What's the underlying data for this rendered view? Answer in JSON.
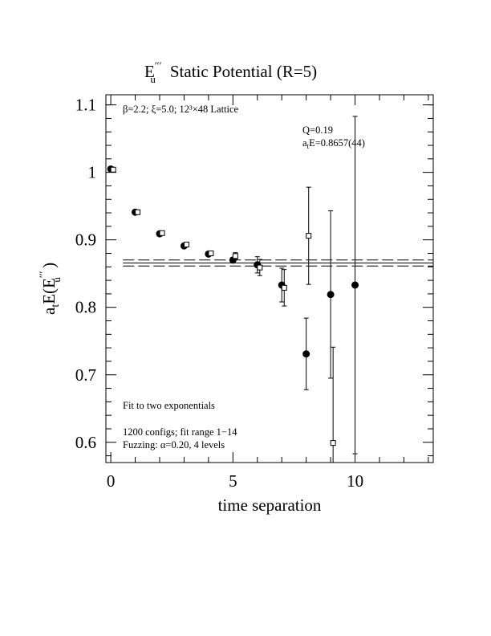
{
  "chart_data": {
    "type": "scatter",
    "title": {
      "symbol": "E",
      "superscript": "′′′",
      "subscript": "u",
      "text": "Static Potential (R=5)"
    },
    "xlabel": "time separation",
    "ylabel": {
      "prefix": "a",
      "prefix_sub": "t",
      "mid": "E(E",
      "superscript": "′′′",
      "subscript": "u",
      "suffix": " )"
    },
    "annotations": {
      "lattice": "β=2.2; ξ=5.0; 12³×48 Lattice",
      "q": "Q=0.19",
      "energy": {
        "prefix": "a",
        "sub": "t",
        "text": "E=0.8657(44)"
      },
      "fit": "Fit to two exponentials",
      "configs": "1200 configs; fit range 1−14",
      "fuzzing": "Fuzzing: α=0.20, 4 levels"
    },
    "series": [
      {
        "marker": "circle",
        "color": "#000000",
        "x": [
          0,
          1,
          2,
          3,
          4,
          5,
          6,
          7,
          8,
          9,
          10
        ],
        "values": [
          1.005,
          0.941,
          0.909,
          0.891,
          0.879,
          0.87,
          0.863,
          0.833,
          0.731,
          0.819,
          0.833
        ],
        "errors": [
          0.002,
          0.002,
          0.003,
          0.003,
          0.003,
          0.004,
          0.012,
          0.025,
          0.053,
          0.124,
          0.25
        ]
      },
      {
        "marker": "square",
        "color": "#000000",
        "x": [
          0.1,
          1.1,
          2.1,
          3.1,
          4.1,
          5.1,
          6.1,
          7.1,
          8.1,
          9.1
        ],
        "values": [
          1.004,
          0.941,
          0.91,
          0.893,
          0.88,
          0.876,
          0.859,
          0.829,
          0.906,
          0.599
        ],
        "errors": [
          0.002,
          0.002,
          0.003,
          0.003,
          0.003,
          0.005,
          0.012,
          0.027,
          0.072,
          0.142
        ]
      }
    ],
    "fit": {
      "value": 0.8657,
      "error": 0.0044
    },
    "xlim": [
      -0.2,
      13.2
    ],
    "ylim": [
      0.57,
      1.115
    ],
    "xticks": [
      0,
      5,
      10
    ],
    "yticks": [
      0.6,
      0.7,
      0.8,
      0.9,
      1,
      1.1
    ],
    "xminorticks": [
      1,
      2,
      3,
      4,
      6,
      7,
      8,
      9,
      11,
      12,
      13
    ],
    "yminorticks": [
      0.58,
      0.62,
      0.64,
      0.66,
      0.68,
      0.72,
      0.74,
      0.76,
      0.78,
      0.82,
      0.84,
      0.86,
      0.88,
      0.92,
      0.94,
      0.96,
      0.98,
      1.02,
      1.04,
      1.06,
      1.08,
      1.1
    ]
  }
}
